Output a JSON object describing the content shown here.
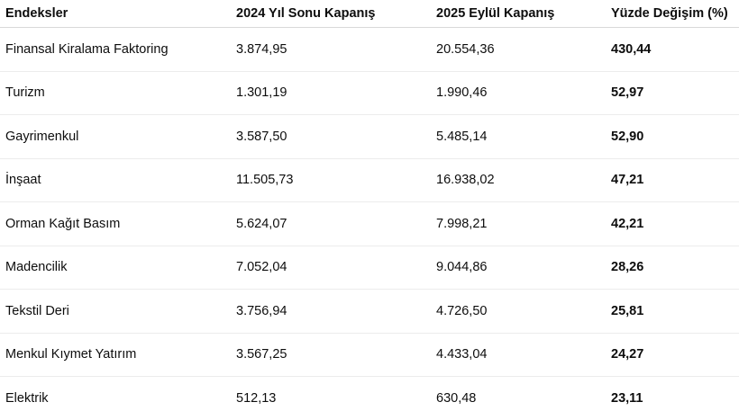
{
  "table": {
    "headers": [
      "Endeksler",
      "2024 Yıl Sonu Kapanış",
      "2025 Eylül Kapanış",
      "Yüzde Değişim (%)"
    ],
    "rows": [
      {
        "index": "Finansal Kiralama Faktoring",
        "close_2024": "3.874,95",
        "close_2025_sep": "20.554,36",
        "change_pct": "430,44"
      },
      {
        "index": "Turizm",
        "close_2024": "1.301,19",
        "close_2025_sep": "1.990,46",
        "change_pct": "52,97"
      },
      {
        "index": "Gayrimenkul",
        "close_2024": "3.587,50",
        "close_2025_sep": "5.485,14",
        "change_pct": "52,90"
      },
      {
        "index": "İnşaat",
        "close_2024": "11.505,73",
        "close_2025_sep": "16.938,02",
        "change_pct": "47,21"
      },
      {
        "index": "Orman Kağıt Basım",
        "close_2024": "5.624,07",
        "close_2025_sep": "7.998,21",
        "change_pct": "42,21"
      },
      {
        "index": "Madencilik",
        "close_2024": "7.052,04",
        "close_2025_sep": "9.044,86",
        "change_pct": "28,26"
      },
      {
        "index": "Tekstil Deri",
        "close_2024": "3.756,94",
        "close_2025_sep": "4.726,50",
        "change_pct": "25,81"
      },
      {
        "index": "Menkul Kıymet Yatırım",
        "close_2024": "3.567,25",
        "close_2025_sep": "4.433,04",
        "change_pct": "24,27"
      },
      {
        "index": "Elektrik",
        "close_2024": "512,13",
        "close_2025_sep": "630,48",
        "change_pct": "23,11"
      }
    ]
  }
}
